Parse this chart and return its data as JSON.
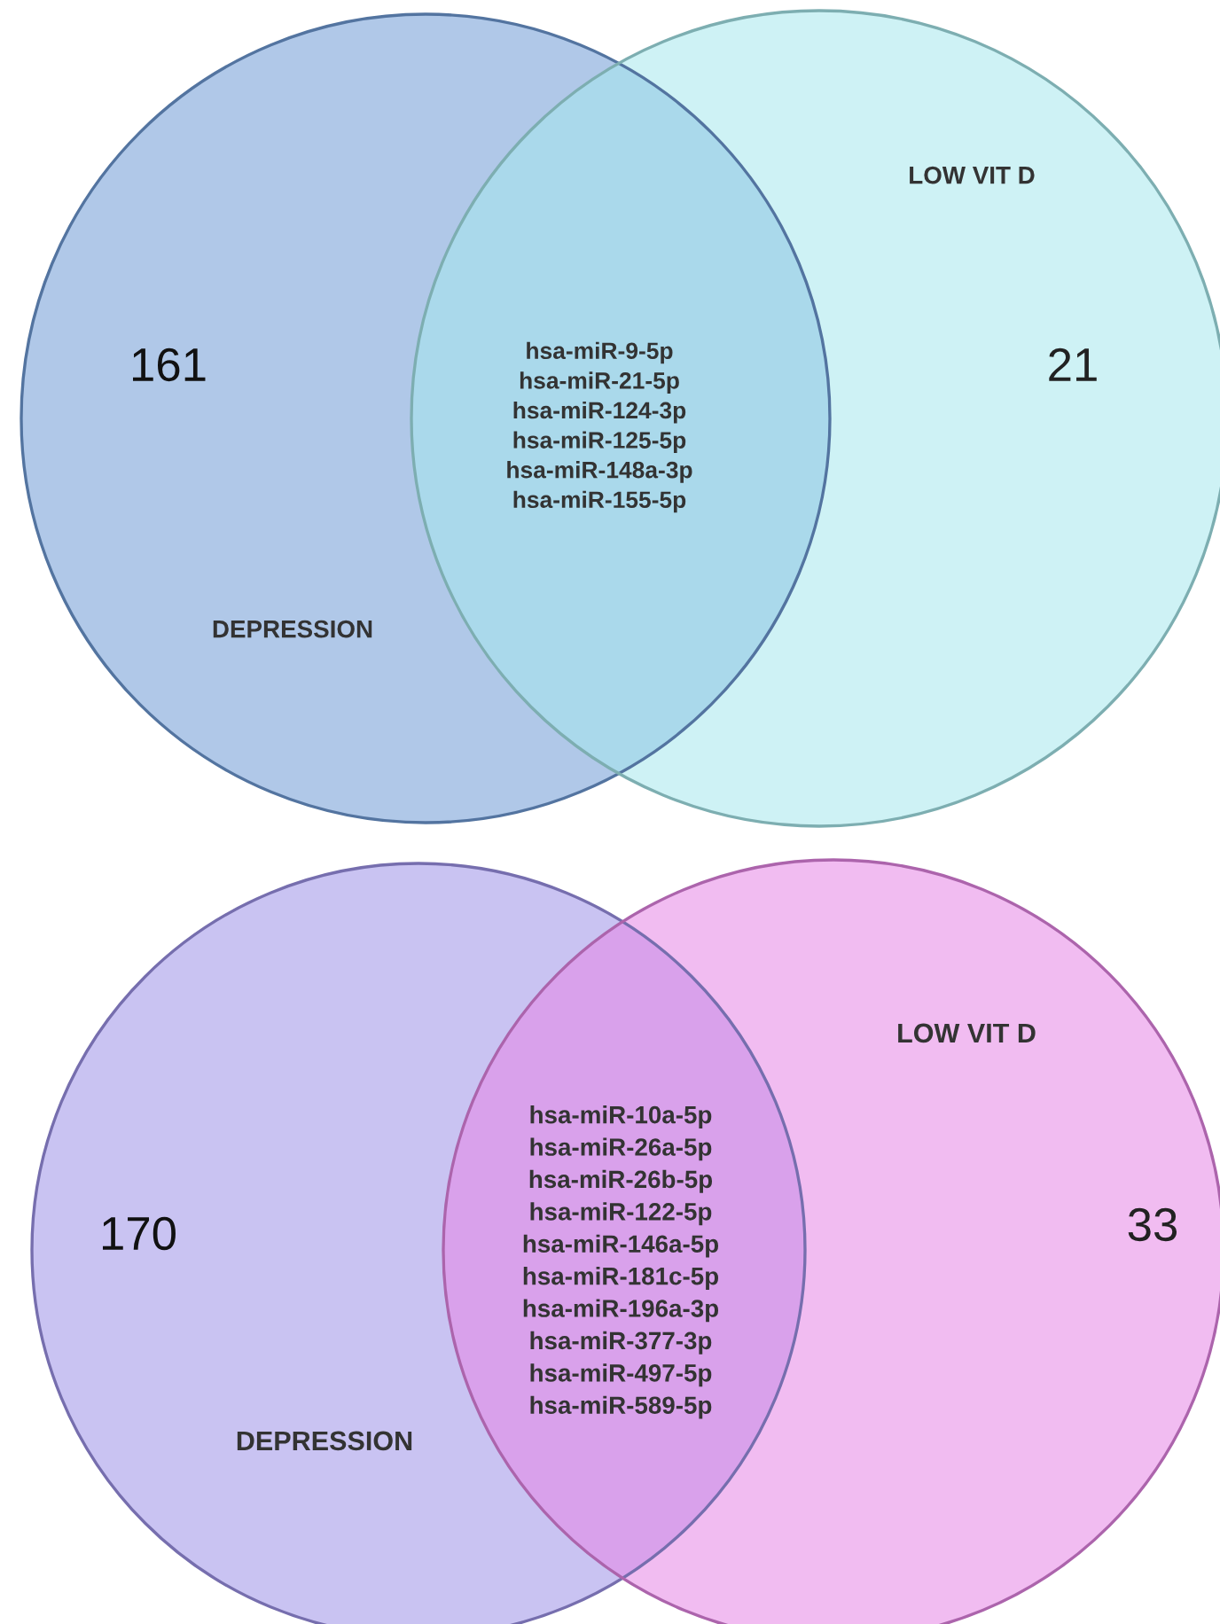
{
  "chart_data": [
    {
      "type": "other",
      "categories": [
        "DEPRESSION",
        "LOW VIT D"
      ],
      "values": [
        161,
        21
      ],
      "data_labels": true,
      "colors": [
        "#6f9bd6",
        "#a6e8ec"
      ],
      "annotations": [
        "hsa-miR-9-5p",
        "hsa-miR-21-5p",
        "hsa-miR-124-3p",
        "hsa-miR-125-5p",
        "hsa-miR-148a-3p",
        "hsa-miR-155-5p"
      ]
    },
    {
      "type": "other",
      "categories": [
        "DEPRESSION",
        "LOW VIT D"
      ],
      "values": [
        170,
        33
      ],
      "data_labels": true,
      "colors": [
        "#9d92e8",
        "#e585e6"
      ],
      "annotations": [
        "hsa-miR-10a-5p",
        "hsa-miR-26a-5p",
        "hsa-miR-26b-5p",
        "hsa-miR-122-5p",
        "hsa-miR-146a-5p",
        "hsa-miR-181c-5p",
        "hsa-miR-196a-3p",
        "hsa-miR-377-3p",
        "hsa-miR-497-5p",
        "hsa-miR-589-5p"
      ]
    }
  ]
}
